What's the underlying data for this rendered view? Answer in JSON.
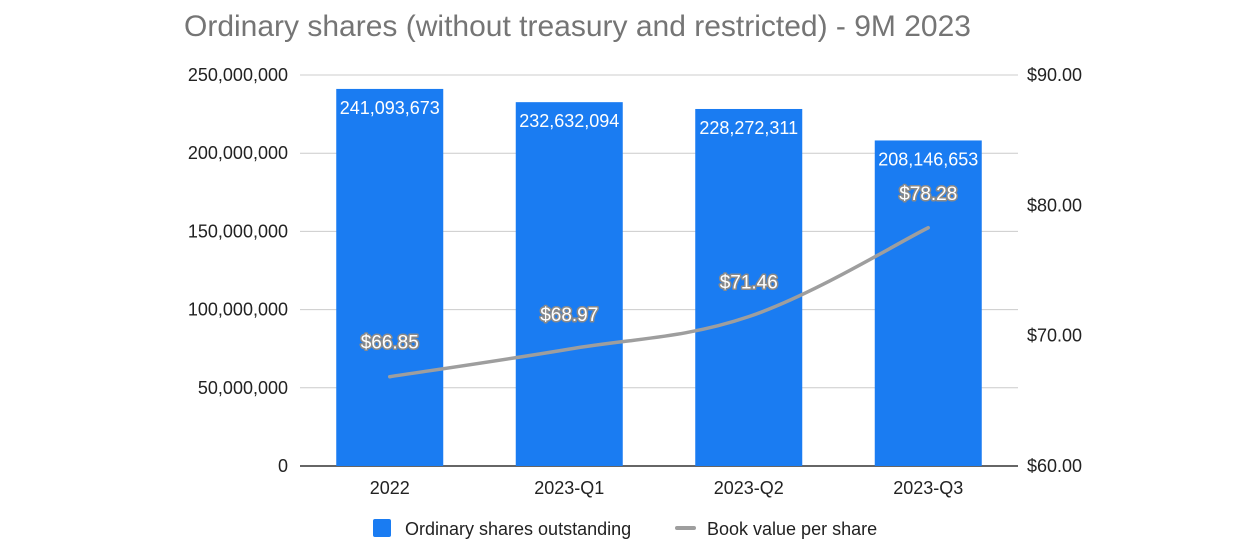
{
  "chart_data": {
    "type": "bar",
    "title": "Ordinary shares (without treasury and restricted) - 9M 2023",
    "categories": [
      "2022",
      "2023-Q1",
      "2023-Q2",
      "2023-Q3"
    ],
    "series": [
      {
        "name": "Ordinary shares outstanding",
        "type": "bar",
        "axis": "left",
        "color": "#1a7cf2",
        "values": [
          241093673,
          232632094,
          228272311,
          208146653
        ],
        "labels": [
          "241,093,673",
          "232,632,094",
          "228,272,311",
          "208,146,653"
        ]
      },
      {
        "name": "Book value per  share",
        "type": "line",
        "axis": "right",
        "color": "#9e9e9e",
        "values": [
          66.85,
          68.97,
          71.46,
          78.28
        ],
        "labels": [
          "$66.85",
          "$68.97",
          "$71.46",
          "$78.28"
        ]
      }
    ],
    "y_left": {
      "min": 0,
      "max": 250000000,
      "ticks": [
        0,
        50000000,
        100000000,
        150000000,
        200000000,
        250000000
      ],
      "tick_labels": [
        "0",
        "50,000,000",
        "100,000,000",
        "150,000,000",
        "200,000,000",
        "250,000,000"
      ]
    },
    "y_right": {
      "min": 60,
      "max": 90,
      "ticks": [
        60,
        70,
        80,
        90
      ],
      "tick_labels": [
        "$60.00",
        "$70.00",
        "$80.00",
        "$90.00"
      ]
    },
    "grid": true,
    "legend_position": "bottom"
  }
}
